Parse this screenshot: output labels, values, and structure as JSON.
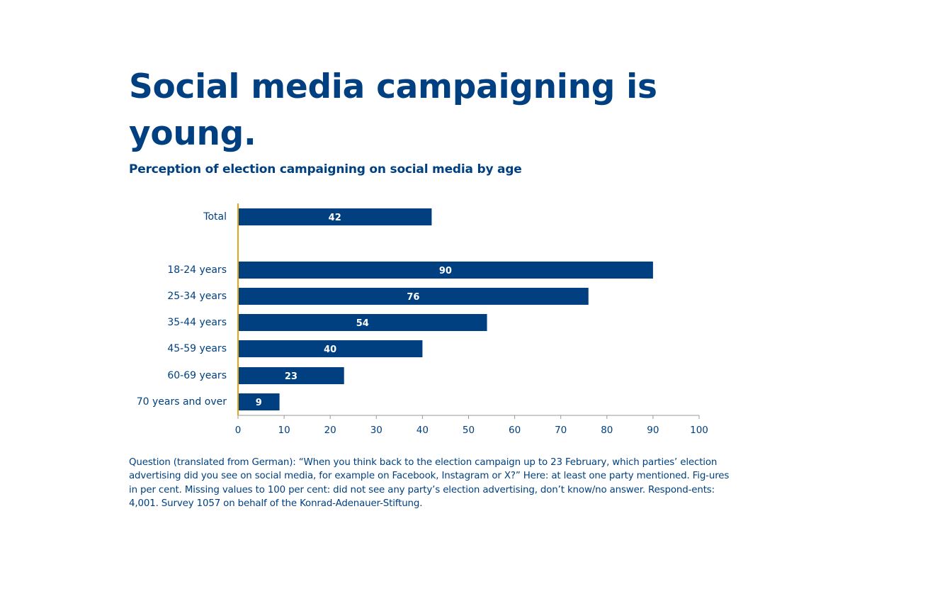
{
  "title": "Social media campaigning is young.",
  "subtitle": "Perception of election campaigning on social media by age",
  "note": "Question (translated from German): “When you think back to the election campaign up to 23 February, which parties’ election advertising did you see on social media, for example on Facebook, Instagram or X?” Here: at least one party mentioned. Fig-ures in per cent. Missing values to 100 per cent: did not see any party’s election advertising, don’t know/no answer. Respond-ents: 4,001. Survey 1057 on behalf of the Konrad-Adenauer-Stiftung.",
  "colors": {
    "bar": "#004080",
    "axis_line": "#e8a317",
    "text": "#004080",
    "value_label": "#ffffff"
  },
  "chart_data": {
    "type": "bar",
    "orientation": "horizontal",
    "categories": [
      "Total",
      "18-24 years",
      "25-34 years",
      "35-44 years",
      "45-59 years",
      "60-69 years",
      "70 years and over"
    ],
    "values": [
      42,
      90,
      76,
      54,
      40,
      23,
      9
    ],
    "xlim": [
      0,
      100
    ],
    "x_ticks": [
      0,
      10,
      20,
      30,
      40,
      50,
      60,
      70,
      80,
      90,
      100
    ],
    "grid": false,
    "legend": "none"
  }
}
